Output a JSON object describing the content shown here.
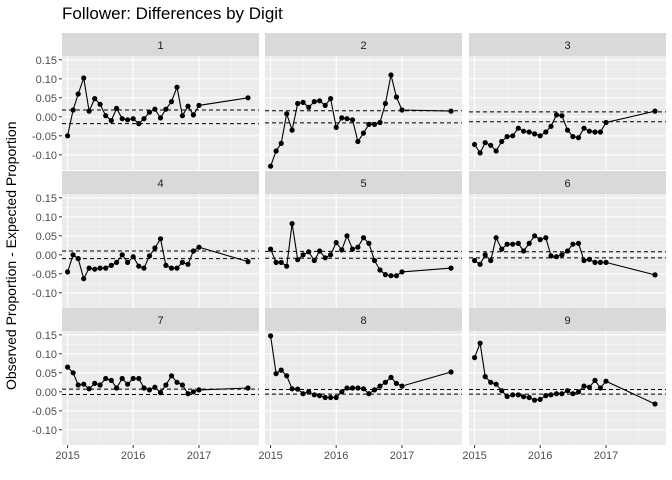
{
  "chart_data": {
    "type": "line",
    "title": "Follower: Differences by Digit",
    "xlabel": "",
    "ylabel": "Observed Proportion - Expected Proportion",
    "xlim": [
      "2014-12-01",
      "2017-12-01"
    ],
    "ylim": [
      -0.14,
      0.16
    ],
    "x_ticks": [
      "2015",
      "2016",
      "2017"
    ],
    "y_ticks": [
      "0.15",
      "0.10",
      "0.05",
      "0.00",
      "-0.05",
      "-0.10"
    ],
    "layout": "facet grid 3 columns x 3 rows, one panel per digit",
    "grid": true,
    "reference_lines": "dashed horizontal lines above and below zero (per digit)",
    "panels": [
      {
        "digit": "1",
        "ref_lines": [
          0.018,
          -0.018
        ],
        "points": [
          [
            "2015-01",
            -0.05
          ],
          [
            "2015-02",
            0.018
          ],
          [
            "2015-03",
            0.06
          ],
          [
            "2015-04",
            0.102
          ],
          [
            "2015-05",
            0.015
          ],
          [
            "2015-06",
            0.048
          ],
          [
            "2015-07",
            0.033
          ],
          [
            "2015-08",
            0.003
          ],
          [
            "2015-09",
            -0.01
          ],
          [
            "2015-10",
            0.022
          ],
          [
            "2015-11",
            -0.005
          ],
          [
            "2015-12",
            -0.008
          ],
          [
            "2016-01",
            -0.005
          ],
          [
            "2016-02",
            -0.018
          ],
          [
            "2016-03",
            -0.005
          ],
          [
            "2016-04",
            0.012
          ],
          [
            "2016-05",
            0.02
          ],
          [
            "2016-06",
            -0.003
          ],
          [
            "2016-07",
            0.02
          ],
          [
            "2016-08",
            0.04
          ],
          [
            "2016-09",
            0.078
          ],
          [
            "2016-10",
            0.003
          ],
          [
            "2016-11",
            0.028
          ],
          [
            "2016-12",
            0.005
          ],
          [
            "2017-01",
            0.03
          ],
          [
            "2017-10",
            0.05
          ]
        ]
      },
      {
        "digit": "2",
        "ref_lines": [
          0.016,
          -0.016
        ],
        "points": [
          [
            "2015-01",
            -0.13
          ],
          [
            "2015-02",
            -0.09
          ],
          [
            "2015-03",
            -0.07
          ],
          [
            "2015-04",
            0.008
          ],
          [
            "2015-05",
            -0.035
          ],
          [
            "2015-06",
            0.035
          ],
          [
            "2015-07",
            0.038
          ],
          [
            "2015-08",
            0.025
          ],
          [
            "2015-09",
            0.04
          ],
          [
            "2015-10",
            0.042
          ],
          [
            "2015-11",
            0.03
          ],
          [
            "2015-12",
            0.048
          ],
          [
            "2016-01",
            -0.028
          ],
          [
            "2016-02",
            -0.003
          ],
          [
            "2016-03",
            -0.005
          ],
          [
            "2016-04",
            -0.008
          ],
          [
            "2016-05",
            -0.065
          ],
          [
            "2016-06",
            -0.043
          ],
          [
            "2016-07",
            -0.02
          ],
          [
            "2016-08",
            -0.02
          ],
          [
            "2016-09",
            -0.015
          ],
          [
            "2016-10",
            0.035
          ],
          [
            "2016-11",
            0.11
          ],
          [
            "2016-12",
            0.052
          ],
          [
            "2017-01",
            0.018
          ],
          [
            "2017-10",
            0.015
          ]
        ]
      },
      {
        "digit": "3",
        "ref_lines": [
          0.013,
          -0.013
        ],
        "points": [
          [
            "2015-01",
            -0.073
          ],
          [
            "2015-02",
            -0.095
          ],
          [
            "2015-03",
            -0.068
          ],
          [
            "2015-04",
            -0.075
          ],
          [
            "2015-05",
            -0.09
          ],
          [
            "2015-06",
            -0.065
          ],
          [
            "2015-07",
            -0.052
          ],
          [
            "2015-08",
            -0.05
          ],
          [
            "2015-09",
            -0.03
          ],
          [
            "2015-10",
            -0.038
          ],
          [
            "2015-11",
            -0.04
          ],
          [
            "2015-12",
            -0.045
          ],
          [
            "2016-01",
            -0.05
          ],
          [
            "2016-02",
            -0.04
          ],
          [
            "2016-03",
            -0.025
          ],
          [
            "2016-04",
            0.005
          ],
          [
            "2016-05",
            0.003
          ],
          [
            "2016-06",
            -0.035
          ],
          [
            "2016-07",
            -0.052
          ],
          [
            "2016-08",
            -0.055
          ],
          [
            "2016-09",
            -0.03
          ],
          [
            "2016-10",
            -0.038
          ],
          [
            "2016-11",
            -0.04
          ],
          [
            "2016-12",
            -0.04
          ],
          [
            "2017-01",
            -0.015
          ],
          [
            "2017-10",
            0.015
          ]
        ]
      },
      {
        "digit": "4",
        "ref_lines": [
          0.01,
          -0.01
        ],
        "points": [
          [
            "2015-01",
            -0.045
          ],
          [
            "2015-02",
            0.0
          ],
          [
            "2015-03",
            -0.01
          ],
          [
            "2015-04",
            -0.063
          ],
          [
            "2015-05",
            -0.035
          ],
          [
            "2015-06",
            -0.038
          ],
          [
            "2015-07",
            -0.035
          ],
          [
            "2015-08",
            -0.035
          ],
          [
            "2015-09",
            -0.028
          ],
          [
            "2015-10",
            -0.02
          ],
          [
            "2015-11",
            0.0
          ],
          [
            "2015-12",
            -0.02
          ],
          [
            "2016-01",
            -0.005
          ],
          [
            "2016-02",
            -0.03
          ],
          [
            "2016-03",
            -0.035
          ],
          [
            "2016-04",
            -0.003
          ],
          [
            "2016-05",
            0.018
          ],
          [
            "2016-06",
            0.042
          ],
          [
            "2016-07",
            -0.028
          ],
          [
            "2016-08",
            -0.035
          ],
          [
            "2016-09",
            -0.035
          ],
          [
            "2016-10",
            -0.02
          ],
          [
            "2016-11",
            -0.025
          ],
          [
            "2016-12",
            0.01
          ],
          [
            "2017-01",
            0.02
          ],
          [
            "2017-10",
            -0.018
          ]
        ]
      },
      {
        "digit": "5",
        "ref_lines": [
          0.009,
          -0.009
        ],
        "points": [
          [
            "2015-01",
            0.015
          ],
          [
            "2015-02",
            -0.02
          ],
          [
            "2015-03",
            -0.02
          ],
          [
            "2015-04",
            -0.03
          ],
          [
            "2015-05",
            0.082
          ],
          [
            "2015-06",
            -0.013
          ],
          [
            "2015-07",
            0.0
          ],
          [
            "2015-08",
            0.008
          ],
          [
            "2015-09",
            -0.015
          ],
          [
            "2015-10",
            0.01
          ],
          [
            "2015-11",
            -0.008
          ],
          [
            "2015-12",
            0.0
          ],
          [
            "2016-01",
            0.032
          ],
          [
            "2016-02",
            0.013
          ],
          [
            "2016-03",
            0.05
          ],
          [
            "2016-04",
            0.015
          ],
          [
            "2016-05",
            0.02
          ],
          [
            "2016-06",
            0.045
          ],
          [
            "2016-07",
            0.03
          ],
          [
            "2016-08",
            -0.015
          ],
          [
            "2016-09",
            -0.04
          ],
          [
            "2016-10",
            -0.052
          ],
          [
            "2016-11",
            -0.055
          ],
          [
            "2016-12",
            -0.055
          ],
          [
            "2017-01",
            -0.045
          ],
          [
            "2017-10",
            -0.035
          ]
        ]
      },
      {
        "digit": "6",
        "ref_lines": [
          0.008,
          -0.008
        ],
        "points": [
          [
            "2015-01",
            -0.015
          ],
          [
            "2015-02",
            -0.025
          ],
          [
            "2015-03",
            0.0
          ],
          [
            "2015-04",
            -0.015
          ],
          [
            "2015-05",
            0.045
          ],
          [
            "2015-06",
            0.015
          ],
          [
            "2015-07",
            0.028
          ],
          [
            "2015-08",
            0.028
          ],
          [
            "2015-09",
            0.03
          ],
          [
            "2015-10",
            0.01
          ],
          [
            "2015-11",
            0.03
          ],
          [
            "2015-12",
            0.05
          ],
          [
            "2016-01",
            0.04
          ],
          [
            "2016-02",
            0.045
          ],
          [
            "2016-03",
            -0.003
          ],
          [
            "2016-04",
            -0.005
          ],
          [
            "2016-05",
            0.0
          ],
          [
            "2016-06",
            0.01
          ],
          [
            "2016-07",
            0.028
          ],
          [
            "2016-08",
            0.03
          ],
          [
            "2016-09",
            -0.015
          ],
          [
            "2016-10",
            -0.012
          ],
          [
            "2016-11",
            -0.02
          ],
          [
            "2016-12",
            -0.02
          ],
          [
            "2017-01",
            -0.02
          ],
          [
            "2017-10",
            -0.053
          ]
        ]
      },
      {
        "digit": "7",
        "ref_lines": [
          0.007,
          -0.007
        ],
        "points": [
          [
            "2015-01",
            0.065
          ],
          [
            "2015-02",
            0.05
          ],
          [
            "2015-03",
            0.018
          ],
          [
            "2015-04",
            0.02
          ],
          [
            "2015-05",
            0.008
          ],
          [
            "2015-06",
            0.022
          ],
          [
            "2015-07",
            0.018
          ],
          [
            "2015-08",
            0.035
          ],
          [
            "2015-09",
            0.03
          ],
          [
            "2015-10",
            0.01
          ],
          [
            "2015-11",
            0.035
          ],
          [
            "2015-12",
            0.02
          ],
          [
            "2016-01",
            0.035
          ],
          [
            "2016-02",
            0.035
          ],
          [
            "2016-03",
            0.01
          ],
          [
            "2016-04",
            0.005
          ],
          [
            "2016-05",
            0.012
          ],
          [
            "2016-06",
            -0.002
          ],
          [
            "2016-07",
            0.018
          ],
          [
            "2016-08",
            0.042
          ],
          [
            "2016-09",
            0.025
          ],
          [
            "2016-10",
            0.018
          ],
          [
            "2016-11",
            -0.005
          ],
          [
            "2016-12",
            0.0
          ],
          [
            "2017-01",
            0.005
          ],
          [
            "2017-10",
            0.01
          ]
        ]
      },
      {
        "digit": "8",
        "ref_lines": [
          0.006,
          -0.006
        ],
        "points": [
          [
            "2015-01",
            0.147
          ],
          [
            "2015-02",
            0.048
          ],
          [
            "2015-03",
            0.057
          ],
          [
            "2015-04",
            0.042
          ],
          [
            "2015-05",
            0.008
          ],
          [
            "2015-06",
            0.007
          ],
          [
            "2015-07",
            -0.005
          ],
          [
            "2015-08",
            0.0
          ],
          [
            "2015-09",
            -0.008
          ],
          [
            "2015-10",
            -0.01
          ],
          [
            "2015-11",
            -0.015
          ],
          [
            "2015-12",
            -0.015
          ],
          [
            "2016-01",
            -0.015
          ],
          [
            "2016-02",
            0.0
          ],
          [
            "2016-03",
            0.01
          ],
          [
            "2016-04",
            0.01
          ],
          [
            "2016-05",
            0.01
          ],
          [
            "2016-06",
            0.008
          ],
          [
            "2016-07",
            -0.005
          ],
          [
            "2016-08",
            0.005
          ],
          [
            "2016-09",
            0.015
          ],
          [
            "2016-10",
            0.025
          ],
          [
            "2016-11",
            0.038
          ],
          [
            "2016-12",
            0.022
          ],
          [
            "2017-01",
            0.015
          ],
          [
            "2017-10",
            0.052
          ]
        ]
      },
      {
        "digit": "9",
        "ref_lines": [
          0.006,
          -0.006
        ],
        "points": [
          [
            "2015-01",
            0.09
          ],
          [
            "2015-02",
            0.128
          ],
          [
            "2015-03",
            0.04
          ],
          [
            "2015-04",
            0.025
          ],
          [
            "2015-05",
            0.02
          ],
          [
            "2015-06",
            0.003
          ],
          [
            "2015-07",
            -0.012
          ],
          [
            "2015-08",
            -0.008
          ],
          [
            "2015-09",
            -0.008
          ],
          [
            "2015-10",
            -0.013
          ],
          [
            "2015-11",
            -0.015
          ],
          [
            "2015-12",
            -0.022
          ],
          [
            "2016-01",
            -0.02
          ],
          [
            "2016-02",
            -0.01
          ],
          [
            "2016-03",
            -0.008
          ],
          [
            "2016-04",
            -0.005
          ],
          [
            "2016-05",
            -0.005
          ],
          [
            "2016-06",
            0.003
          ],
          [
            "2016-07",
            -0.005
          ],
          [
            "2016-08",
            0.0
          ],
          [
            "2016-09",
            0.015
          ],
          [
            "2016-10",
            0.012
          ],
          [
            "2016-11",
            0.03
          ],
          [
            "2016-12",
            0.01
          ],
          [
            "2017-01",
            0.028
          ],
          [
            "2017-10",
            -0.032
          ]
        ]
      }
    ]
  }
}
